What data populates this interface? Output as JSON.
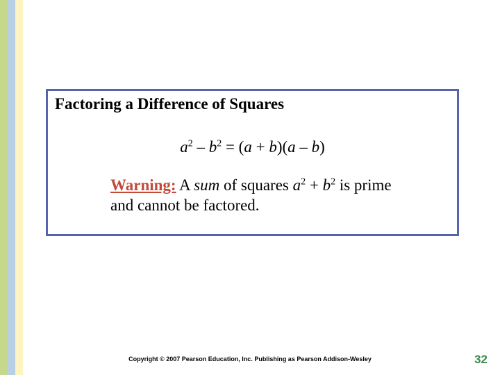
{
  "stripes": {
    "color1": "#c6d88a",
    "color2": "#b9cfe5",
    "color3": "#fef4c2"
  },
  "box": {
    "border_color": "#5963ad",
    "title": "Factoring a Difference of Squares"
  },
  "formula": {
    "a": "a",
    "b": "b",
    "exp": "2",
    "minus": " – ",
    "eq": " = (",
    "plus": " + ",
    "close_open": ")(",
    "close": ")"
  },
  "warning": {
    "label": "Warning:",
    "label_color": "#c14a3a",
    "text1": " A ",
    "sum": "sum",
    "text2": " of squares ",
    "a": "a",
    "b": "b",
    "exp": "2",
    "plus": " + ",
    "text3": " is prime and cannot be factored."
  },
  "copyright": "Copyright © 2007 Pearson Education, Inc.  Publishing as Pearson Addison-Wesley",
  "page_number": "32",
  "page_number_color": "#3a8a4a"
}
